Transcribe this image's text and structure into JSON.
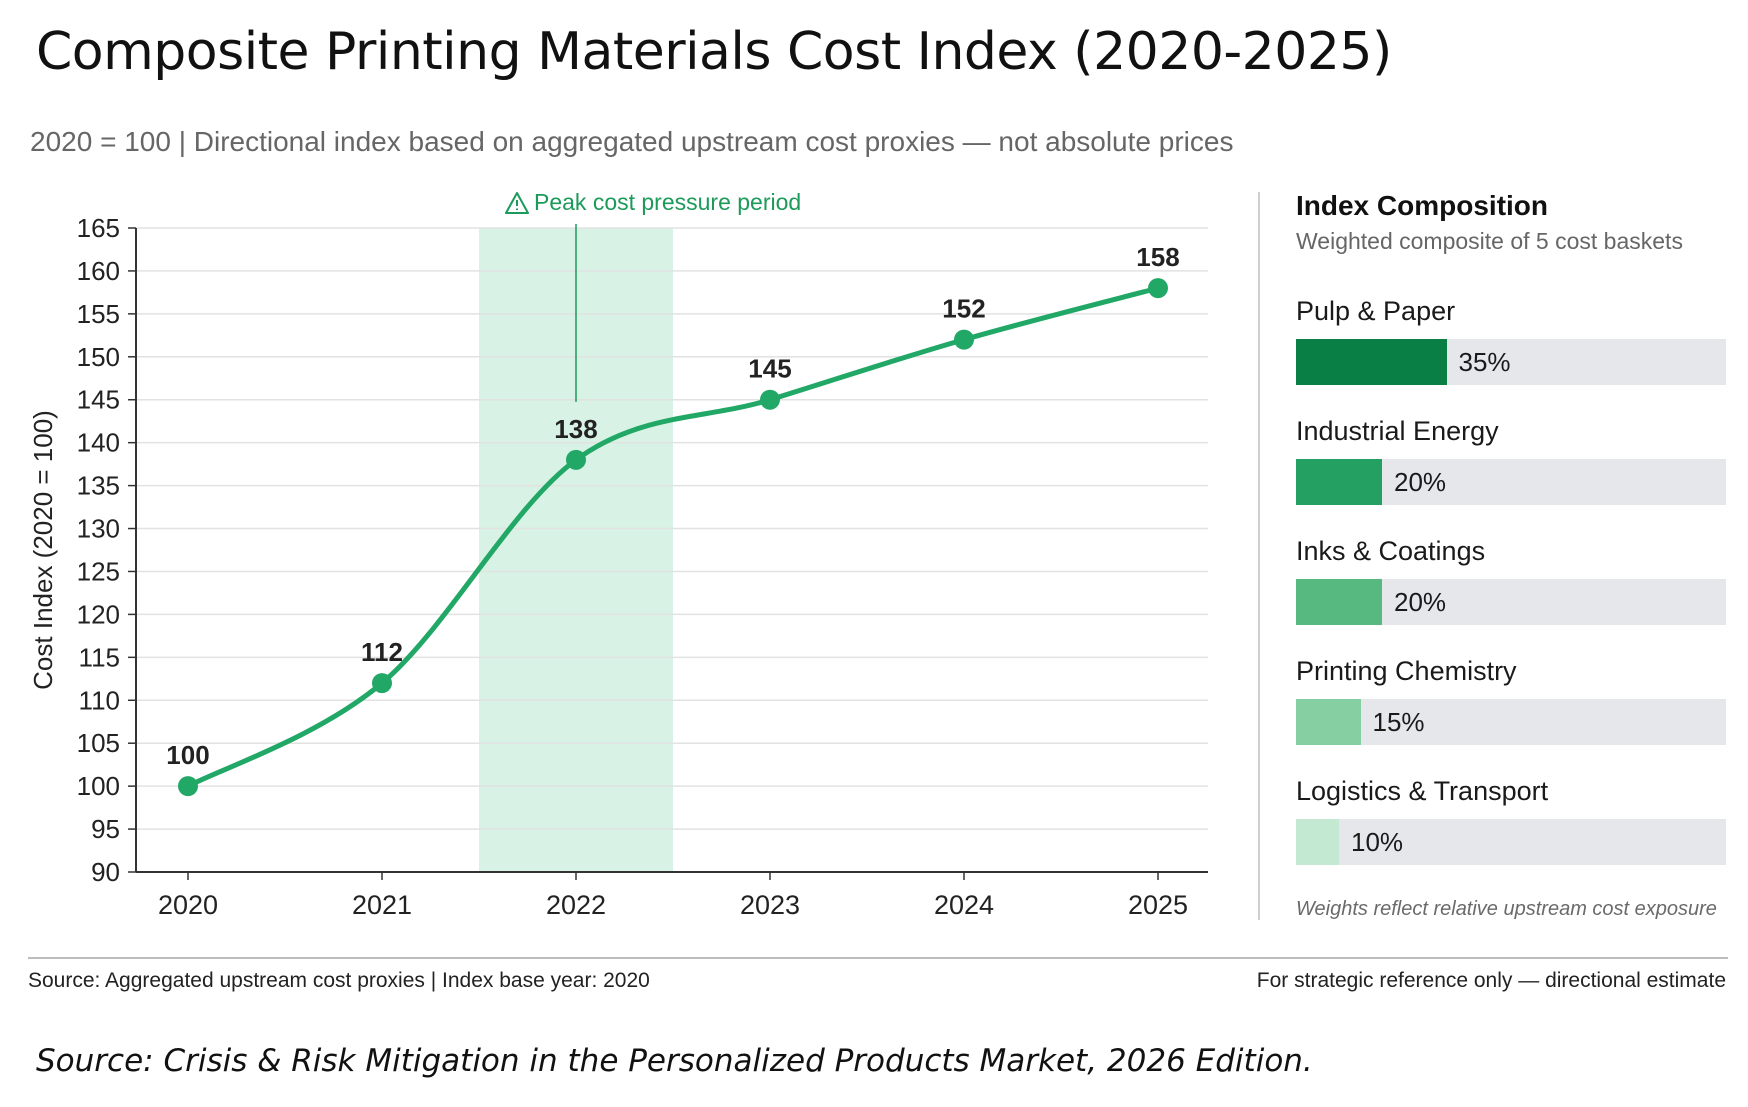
{
  "title": "Composite Printing Materials Cost Index (2020-2025)",
  "subtitle": "2020 = 100 | Directional index based on aggregated upstream cost proxies — not absolute prices",
  "chart_data": {
    "type": "line",
    "x": [
      "2020",
      "2021",
      "2022",
      "2023",
      "2024",
      "2025"
    ],
    "series": [
      {
        "values": [
          100,
          112,
          138,
          145,
          152,
          158
        ],
        "color": "#22a866"
      }
    ],
    "ylabel": "Cost Index (2020 = 100)",
    "xlabel": "",
    "ylim": [
      90,
      165
    ],
    "yticks": [
      90,
      95,
      100,
      105,
      110,
      115,
      120,
      125,
      130,
      135,
      140,
      145,
      150,
      155,
      160,
      165
    ],
    "grid": true,
    "highlight": {
      "label": "Peak cost pressure period",
      "x_from": 2021.5,
      "x_to": 2022.5,
      "color": "#d8f3e5",
      "label_color": "#1c9a5a",
      "icon": "warning-triangle-icon"
    },
    "data_labels": [
      "100",
      "112",
      "138",
      "145",
      "152",
      "158"
    ]
  },
  "composition": {
    "title": "Index Composition",
    "subtitle": "Weighted composite of 5 cost baskets",
    "items": [
      {
        "label": "Pulp & Paper",
        "weight": 35,
        "pct_label": "35%",
        "color": "#0a7f45"
      },
      {
        "label": "Industrial Energy",
        "weight": 20,
        "pct_label": "20%",
        "color": "#24a062"
      },
      {
        "label": "Inks & Coatings",
        "weight": 20,
        "pct_label": "20%",
        "color": "#57b97f"
      },
      {
        "label": "Printing Chemistry",
        "weight": 15,
        "pct_label": "15%",
        "color": "#86cfa3"
      },
      {
        "label": "Logistics & Transport",
        "weight": 10,
        "pct_label": "10%",
        "color": "#c4e9d3"
      }
    ],
    "note": "Weights reflect relative upstream cost exposure"
  },
  "footer": {
    "left": "Source: Aggregated upstream cost proxies | Index base year: 2020",
    "right": "For strategic reference only — directional estimate"
  },
  "source": "Source: Crisis & Risk Mitigation in the Personalized Products Market, 2026 Edition."
}
